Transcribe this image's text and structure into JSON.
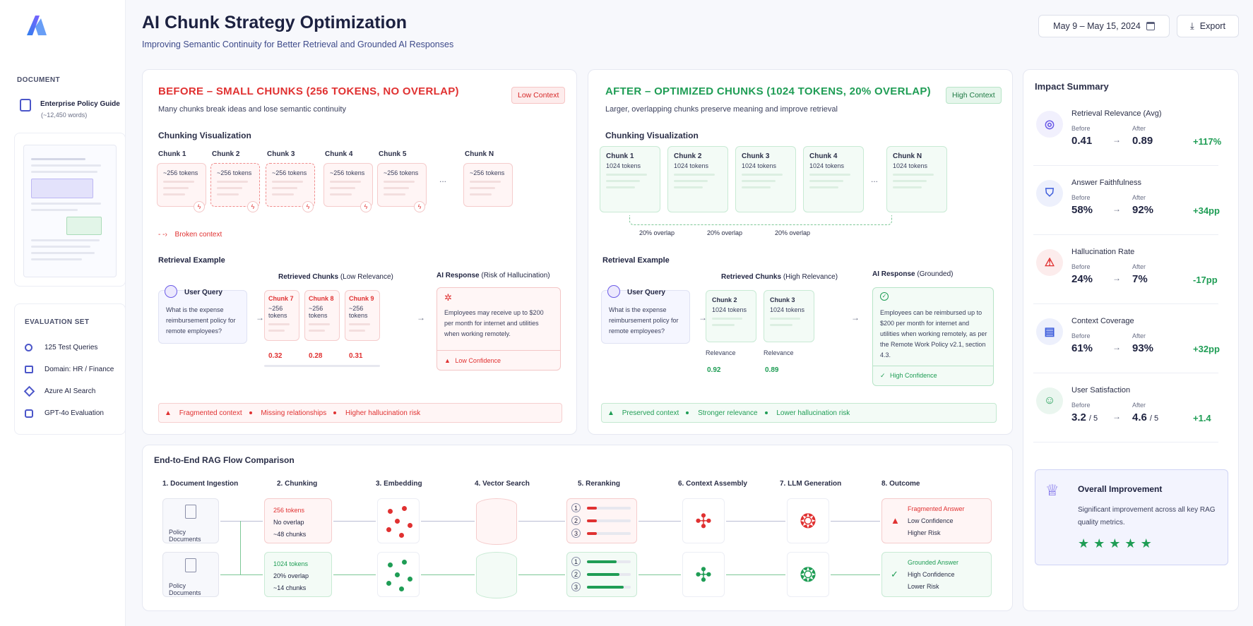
{
  "header": {
    "title": "AI Chunk Strategy Optimization",
    "subtitle": "Improving Semantic Continuity for Better Retrieval and Grounded AI Responses",
    "date_range": "May 9 – May 15, 2024",
    "export_label": "Export"
  },
  "sidebar": {
    "document_heading": "DOCUMENT",
    "doc_name": "Enterprise Policy Guide",
    "doc_words": "(~12,450 words)",
    "eval_heading": "EVALUATION SET",
    "eval_items": [
      "125 Test Queries",
      "Domain: HR / Finance",
      "Azure AI Search",
      "GPT-4o Evaluation"
    ]
  },
  "before": {
    "title": "BEFORE – SMALL CHUNKS (256 TOKENS, NO OVERLAP)",
    "badge": "Low Context",
    "desc": "Many chunks break ideas and lose semantic continuity",
    "viz_label": "Chunking Visualization",
    "chunks": [
      "Chunk 1",
      "Chunk 2",
      "Chunk 3",
      "Chunk 4",
      "Chunk 5",
      "Chunk N"
    ],
    "chunk_tokens": "~256 tokens",
    "ellipsis": "...",
    "broken": "Broken context",
    "retrieval_label": "Retrieval Example",
    "query_label": "User Query",
    "query_text": "What is the expense reimbursement policy for remote employees?",
    "retrieved_label": "Retrieved Chunks",
    "retrieved_qual": "(Low Relevance)",
    "retrieved": [
      "Chunk 7",
      "Chunk 8",
      "Chunk 9"
    ],
    "scores": [
      "0.32",
      "0.28",
      "0.31"
    ],
    "response_label": "AI Response",
    "response_qual": "(Risk of Hallucination)",
    "response_text": "Employees may receive up to $200 per month for internet and utilities when working remotely.",
    "confidence": "Low Confidence",
    "footer": [
      "Fragmented context",
      "Missing relationships",
      "Higher hallucination risk"
    ]
  },
  "after": {
    "title": "AFTER – OPTIMIZED CHUNKS (1024 TOKENS, 20% OVERLAP)",
    "badge": "High Context",
    "desc": "Larger, overlapping chunks preserve meaning and improve retrieval",
    "viz_label": "Chunking Visualization",
    "chunks": [
      "Chunk 1",
      "Chunk 2",
      "Chunk 3",
      "Chunk 4",
      "Chunk N"
    ],
    "chunk_tokens": "1024 tokens",
    "ellipsis": "...",
    "overlap": "20% overlap",
    "retrieval_label": "Retrieval Example",
    "query_label": "User Query",
    "query_text": "What is the expense reimbursement policy for remote employees?",
    "retrieved_label": "Retrieved Chunks",
    "retrieved_qual": "(High Relevance)",
    "retrieved": [
      "Chunk 2",
      "Chunk 3"
    ],
    "relevance_label": "Relevance",
    "scores": [
      "0.92",
      "0.89"
    ],
    "response_label": "AI Response",
    "response_qual": "(Grounded)",
    "response_text": "Employees can be reimbursed up to $200 per month for internet and utilities when working remotely, as per the Remote Work Policy v2.1, section 4.3.",
    "confidence": "High Confidence",
    "footer": [
      "Preserved context",
      "Stronger relevance",
      "Lower hallucination risk"
    ]
  },
  "impact": {
    "title": "Impact Summary",
    "before_label": "Before",
    "after_label": "After",
    "metrics": [
      {
        "name": "Retrieval Relevance (Avg)",
        "before": "0.41",
        "after": "0.89",
        "delta": "+117%",
        "icon": "target-icon",
        "color": "#6c5ce7"
      },
      {
        "name": "Answer Faithfulness",
        "before": "58%",
        "after": "92%",
        "delta": "+34pp",
        "icon": "shield-check-icon",
        "color": "#3b5bdb"
      },
      {
        "name": "Hallucination Rate",
        "before": "24%",
        "after": "7%",
        "delta": "-17pp",
        "icon": "warning-icon",
        "color": "#e03131"
      },
      {
        "name": "Context Coverage",
        "before": "61%",
        "after": "93%",
        "delta": "+32pp",
        "icon": "document-icon",
        "color": "#3b5bdb"
      },
      {
        "name": "User Satisfaction",
        "before": "3.2",
        "before_suffix": "/ 5",
        "after": "4.6",
        "after_suffix": "/ 5",
        "delta": "+1.4",
        "icon": "smiley-icon",
        "color": "#1f9d55"
      }
    ],
    "overall_title": "Overall Improvement",
    "overall_text": "Significant improvement across all key RAG quality metrics.",
    "stars": 5
  },
  "flow": {
    "title": "End-to-End RAG Flow Comparison",
    "steps": [
      "1. Document Ingestion",
      "2. Chunking",
      "3. Embedding",
      "4. Vector Search",
      "5. Reranking",
      "6. Context Assembly",
      "7. LLM Generation",
      "8. Outcome"
    ],
    "doc_label": "Policy Documents",
    "before_chunking": [
      "256 tokens",
      "No overlap",
      "~48 chunks"
    ],
    "after_chunking": [
      "1024 tokens",
      "20% overlap",
      "~14 chunks"
    ],
    "rank_numbers": [
      "1",
      "2",
      "3"
    ],
    "before_outcome": [
      "Fragmented Answer",
      "Low Confidence",
      "Higher Risk"
    ],
    "after_outcome": [
      "Grounded Answer",
      "High Confidence",
      "Lower Risk"
    ]
  },
  "colors": {
    "red": "#e03131",
    "green": "#1f9d55",
    "accent": "#3b5bdb"
  }
}
